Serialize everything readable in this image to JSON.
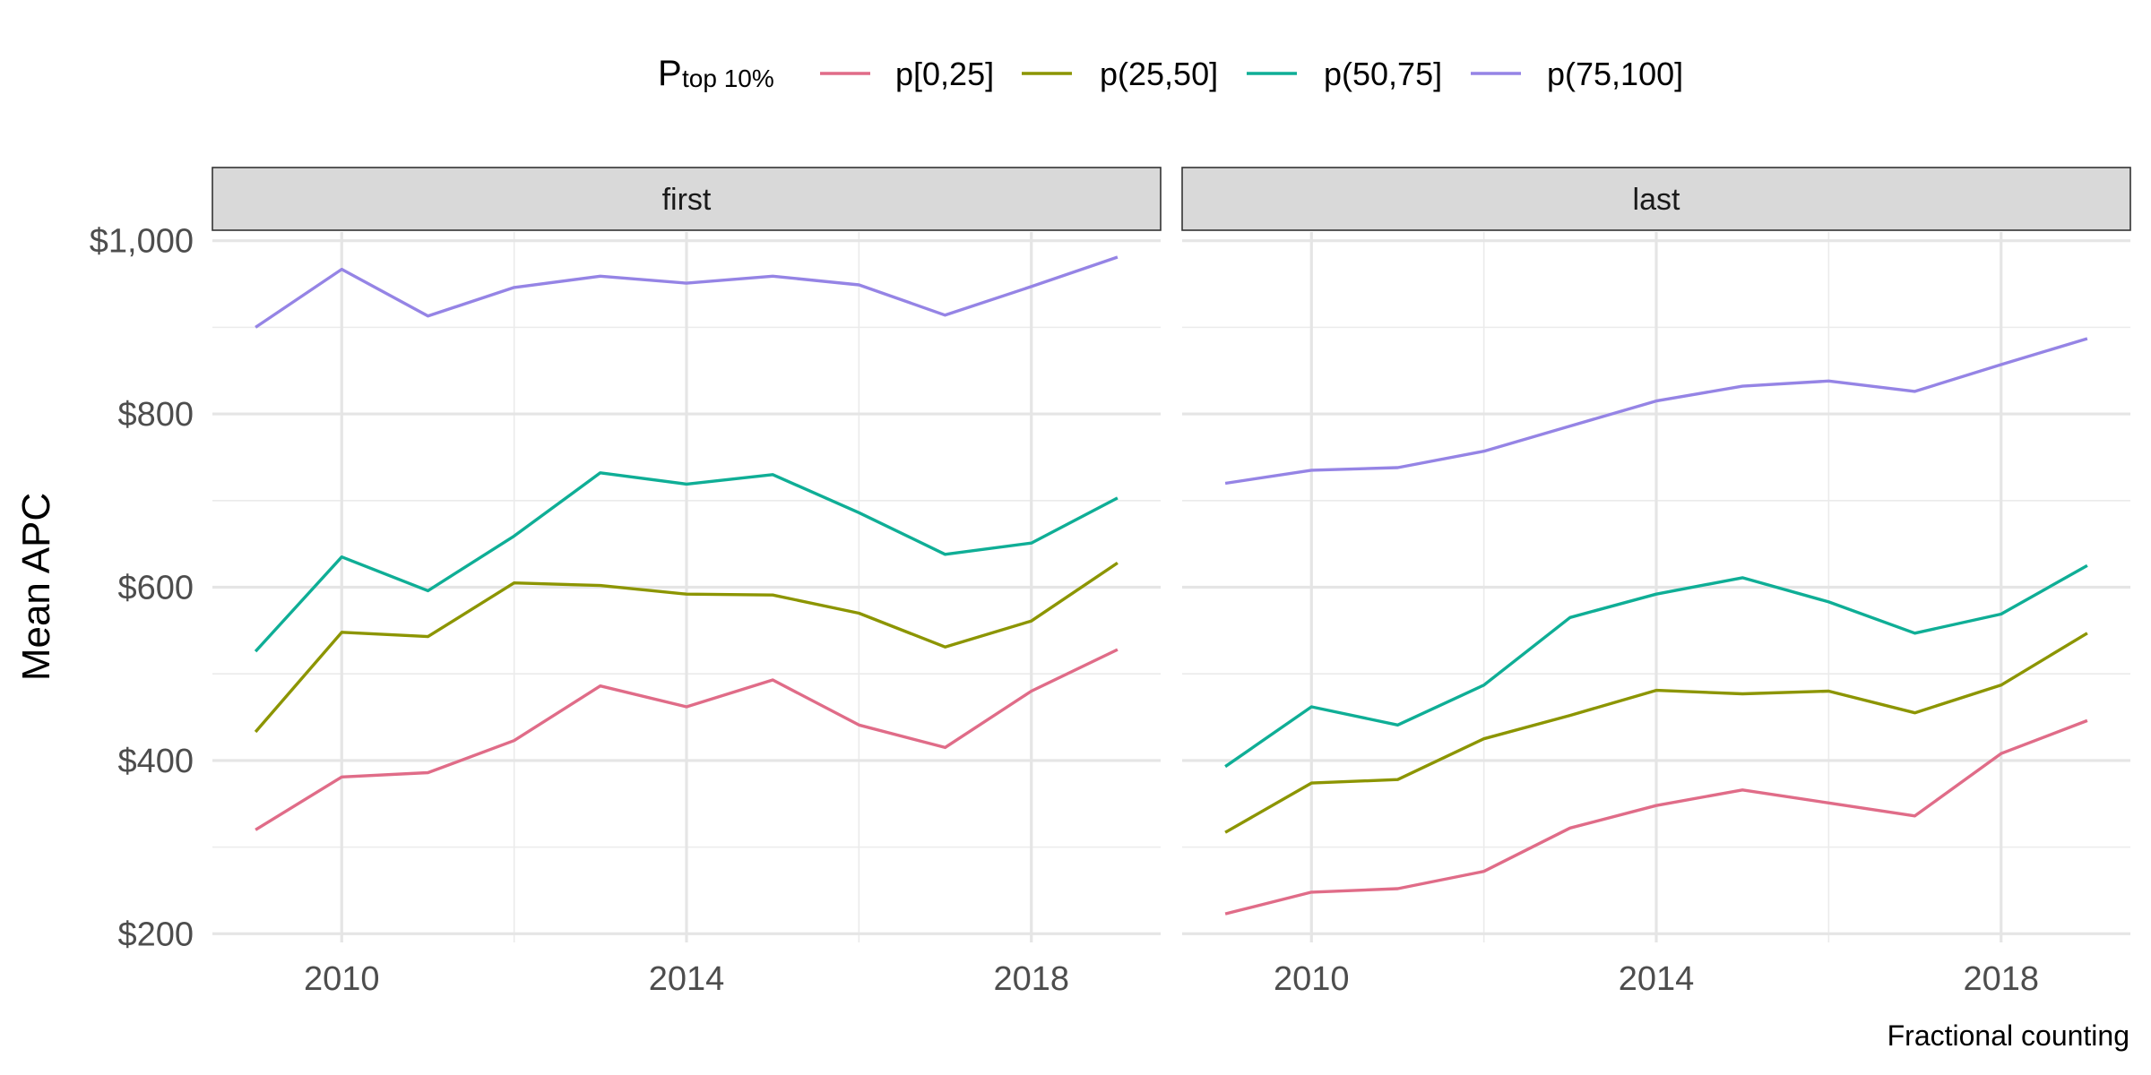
{
  "chart_data": {
    "type": "line",
    "legend": {
      "title_main": "P",
      "title_sub": "top 10%",
      "position": "top"
    },
    "series_colors": [
      "#E06C88",
      "#8C9500",
      "#0FAE96",
      "#9584E5"
    ],
    "ylabel": "Mean APC",
    "caption": "Fractional counting",
    "x": [
      2009,
      2010,
      2011,
      2012,
      2013,
      2014,
      2015,
      2016,
      2017,
      2018,
      2019
    ],
    "x_ticks": [
      2010,
      2014,
      2018
    ],
    "x_tick_labels": [
      "2010",
      "2014",
      "2018"
    ],
    "ylim": [
      190,
      1010
    ],
    "y_ticks": [
      200,
      400,
      600,
      800,
      1000
    ],
    "y_tick_labels": [
      "$200",
      "$400",
      "$600",
      "$800",
      "$1,000"
    ],
    "grid": true,
    "series_names": [
      "p[0,25]",
      "p(25,50]",
      "p(50,75]",
      "p(75,100]"
    ],
    "panels": [
      {
        "label": "first",
        "series": [
          {
            "name": "p[0,25]",
            "values": [
              320,
              381,
              386,
              423,
              486,
              462,
              493,
              441,
              415,
              480,
              528
            ]
          },
          {
            "name": "p(25,50]",
            "values": [
              433,
              548,
              543,
              605,
              602,
              592,
              591,
              570,
              531,
              561,
              628
            ]
          },
          {
            "name": "p(50,75]",
            "values": [
              526,
              635,
              596,
              659,
              732,
              719,
              730,
              686,
              638,
              651,
              703
            ]
          },
          {
            "name": "p(75,100]",
            "values": [
              900,
              967,
              913,
              946,
              959,
              951,
              959,
              949,
              914,
              947,
              981
            ]
          }
        ]
      },
      {
        "label": "last",
        "series": [
          {
            "name": "p[0,25]",
            "values": [
              223,
              248,
              252,
              272,
              322,
              348,
              366,
              351,
              336,
              408,
              446
            ]
          },
          {
            "name": "p(25,50]",
            "values": [
              317,
              374,
              378,
              425,
              452,
              481,
              477,
              480,
              455,
              487,
              547
            ]
          },
          {
            "name": "p(50,75]",
            "values": [
              393,
              462,
              441,
              487,
              565,
              592,
              611,
              583,
              547,
              569,
              625
            ]
          },
          {
            "name": "p(75,100]",
            "values": [
              720,
              735,
              738,
              757,
              786,
              815,
              832,
              838,
              826,
              857,
              887
            ]
          }
        ]
      }
    ]
  }
}
